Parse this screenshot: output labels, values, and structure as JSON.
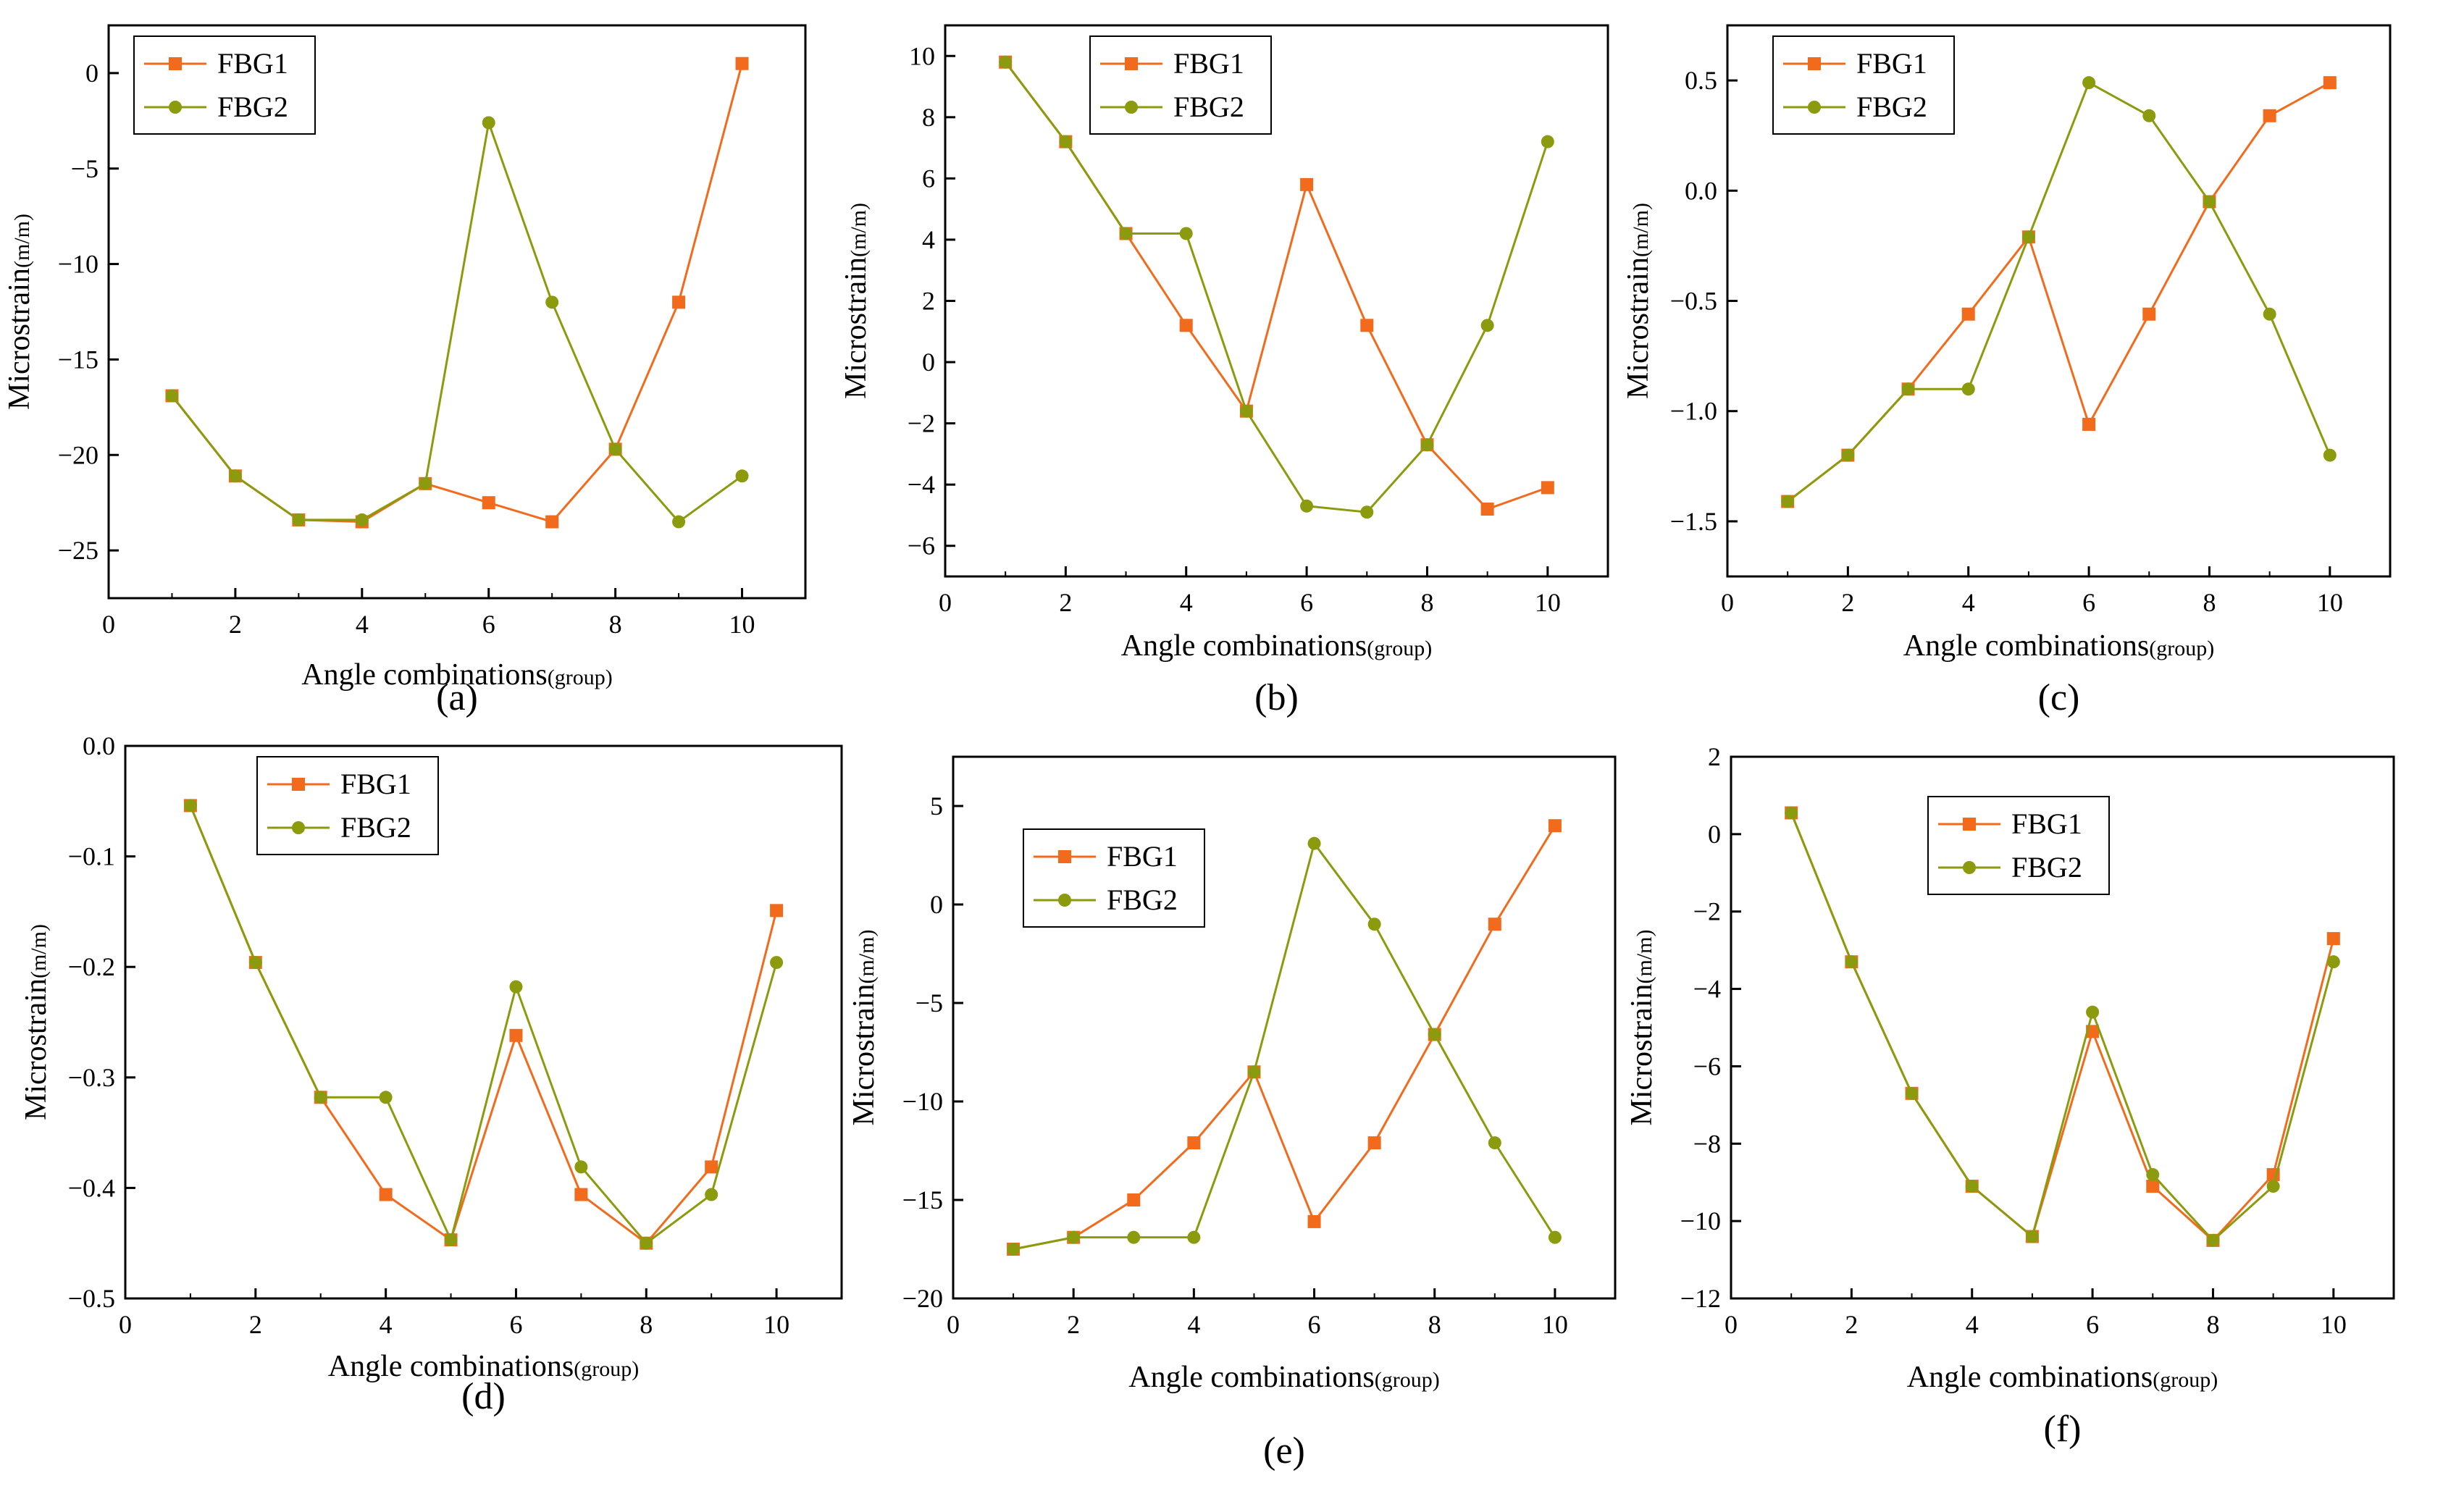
{
  "figure": {
    "series_colors": {
      "FBG1": "#f26b1d",
      "FBG2": "#8c9a0e"
    },
    "series_markers": {
      "FBG1": "square",
      "FBG2": "circle"
    }
  },
  "chart_data": [
    {
      "type": "line",
      "panel_label": "(a)",
      "xlabel": "Angle combinations",
      "xlabel_unit": "(group)",
      "ylabel": "Microstrain",
      "ylabel_unit": "(m/m)",
      "xlim": [
        0,
        11
      ],
      "ylim": [
        -27.5,
        2.5
      ],
      "xticks": [
        0,
        2,
        4,
        6,
        8,
        10
      ],
      "yticks": [
        0,
        -5,
        -10,
        -15,
        -20,
        -25
      ],
      "legend_position": "top-left",
      "x": [
        1,
        2,
        3,
        4,
        5,
        6,
        7,
        8,
        9,
        10
      ],
      "series": [
        {
          "name": "FBG1",
          "values": [
            -16.9,
            -21.1,
            -23.4,
            -23.5,
            -21.5,
            -22.5,
            -23.5,
            -19.7,
            -12.0,
            0.5
          ]
        },
        {
          "name": "FBG2",
          "values": [
            -16.9,
            -21.1,
            -23.4,
            -23.4,
            -21.5,
            -2.6,
            -12.0,
            -19.7,
            -23.5,
            -21.1
          ]
        }
      ]
    },
    {
      "type": "line",
      "panel_label": "(b)",
      "xlabel": "Angle combinations",
      "xlabel_unit": "(group)",
      "ylabel": "Microstrain",
      "ylabel_unit": "(m/m)",
      "xlim": [
        0,
        11
      ],
      "ylim": [
        -7,
        11
      ],
      "xticks": [
        0,
        2,
        4,
        6,
        8,
        10
      ],
      "yticks": [
        10,
        8,
        6,
        4,
        2,
        0,
        -2,
        -4,
        -6
      ],
      "legend_position": "top-center",
      "x": [
        1,
        2,
        3,
        4,
        5,
        6,
        7,
        8,
        9,
        10
      ],
      "series": [
        {
          "name": "FBG1",
          "values": [
            9.8,
            7.2,
            4.2,
            1.2,
            -1.6,
            5.8,
            1.2,
            -2.7,
            -4.8,
            -4.1
          ]
        },
        {
          "name": "FBG2",
          "values": [
            9.8,
            7.2,
            4.2,
            4.2,
            -1.6,
            -4.7,
            -4.9,
            -2.7,
            1.2,
            7.2
          ]
        }
      ]
    },
    {
      "type": "line",
      "panel_label": "(c)",
      "xlabel": "Angle combinations",
      "xlabel_unit": "(group)",
      "ylabel": "Microstrain",
      "ylabel_unit": "(m/m)",
      "xlim": [
        0,
        11
      ],
      "ylim": [
        -1.75,
        0.75
      ],
      "xticks": [
        0,
        2,
        4,
        6,
        8,
        10
      ],
      "yticks": [
        0.5,
        0.0,
        -0.5,
        -1.0,
        -1.5
      ],
      "ytick_labels": [
        "0.5",
        "0.0",
        "−0.5",
        "−1.0",
        "−1.5"
      ],
      "legend_position": "top-left",
      "x": [
        1,
        2,
        3,
        4,
        5,
        6,
        7,
        8,
        9,
        10
      ],
      "series": [
        {
          "name": "FBG1",
          "values": [
            -1.41,
            -1.2,
            -0.9,
            -0.56,
            -0.21,
            -1.06,
            -0.56,
            -0.05,
            0.34,
            0.49
          ]
        },
        {
          "name": "FBG2",
          "values": [
            -1.41,
            -1.2,
            -0.9,
            -0.9,
            -0.21,
            0.49,
            0.34,
            -0.05,
            -0.56,
            -1.2
          ]
        }
      ]
    },
    {
      "type": "line",
      "panel_label": "(d)",
      "xlabel": "Angle combinations",
      "xlabel_unit": "(group)",
      "ylabel": "Microstrain",
      "ylabel_unit": "(m/m)",
      "xlim": [
        0,
        11
      ],
      "ylim": [
        -0.5,
        0.0
      ],
      "xticks": [
        0,
        2,
        4,
        6,
        8,
        10
      ],
      "yticks": [
        0.0,
        -0.1,
        -0.2,
        -0.3,
        -0.4,
        -0.5
      ],
      "ytick_labels": [
        "0.0",
        "−0.1",
        "−0.2",
        "−0.3",
        "−0.4",
        "−0.5"
      ],
      "legend_position": "top-center",
      "x": [
        1,
        2,
        3,
        4,
        5,
        6,
        7,
        8,
        9,
        10
      ],
      "series": [
        {
          "name": "FBG1",
          "values": [
            -0.054,
            -0.196,
            -0.318,
            -0.406,
            -0.447,
            -0.262,
            -0.406,
            -0.45,
            -0.381,
            -0.149
          ]
        },
        {
          "name": "FBG2",
          "values": [
            -0.054,
            -0.196,
            -0.318,
            -0.318,
            -0.447,
            -0.218,
            -0.381,
            -0.45,
            -0.406,
            -0.196
          ]
        }
      ]
    },
    {
      "type": "line",
      "panel_label": "(e)",
      "xlabel": "Angle combinations",
      "xlabel_unit": "(group)",
      "ylabel": "Microstrain",
      "ylabel_unit": "(m/m)",
      "xlim": [
        0,
        11
      ],
      "ylim": [
        -20,
        7.5
      ],
      "xticks": [
        0,
        2,
        4,
        6,
        8,
        10
      ],
      "yticks": [
        5,
        0,
        -5,
        -10,
        -15,
        -20
      ],
      "legend_position": "top-left",
      "x": [
        1,
        2,
        3,
        4,
        5,
        6,
        7,
        8,
        9,
        10
      ],
      "series": [
        {
          "name": "FBG1",
          "values": [
            -17.5,
            -16.9,
            -15.0,
            -12.1,
            -8.5,
            -16.1,
            -12.1,
            -6.6,
            -1.0,
            4.0
          ]
        },
        {
          "name": "FBG2",
          "values": [
            -17.5,
            -16.9,
            -16.9,
            -16.9,
            -8.5,
            3.1,
            -1.0,
            -6.6,
            -12.1,
            -16.9
          ]
        }
      ]
    },
    {
      "type": "line",
      "panel_label": "(f)",
      "xlabel": "Angle combinations",
      "xlabel_unit": "(group)",
      "ylabel": "Microstrain",
      "ylabel_unit": "(m/m)",
      "xlim": [
        0,
        11
      ],
      "ylim": [
        -12,
        2
      ],
      "xticks": [
        0,
        2,
        4,
        6,
        8,
        10
      ],
      "yticks": [
        2,
        0,
        -2,
        -4,
        -6,
        -8,
        -10,
        -12
      ],
      "legend_position": "top-center",
      "x": [
        1,
        2,
        3,
        4,
        5,
        6,
        7,
        8,
        9,
        10
      ],
      "series": [
        {
          "name": "FBG1",
          "values": [
            0.55,
            -3.3,
            -6.7,
            -9.1,
            -10.4,
            -5.1,
            -9.1,
            -10.5,
            -8.8,
            -2.7
          ]
        },
        {
          "name": "FBG2",
          "values": [
            0.55,
            -3.3,
            -6.7,
            -9.1,
            -10.4,
            -4.6,
            -8.8,
            -10.5,
            -9.1,
            -3.3
          ]
        }
      ]
    }
  ]
}
